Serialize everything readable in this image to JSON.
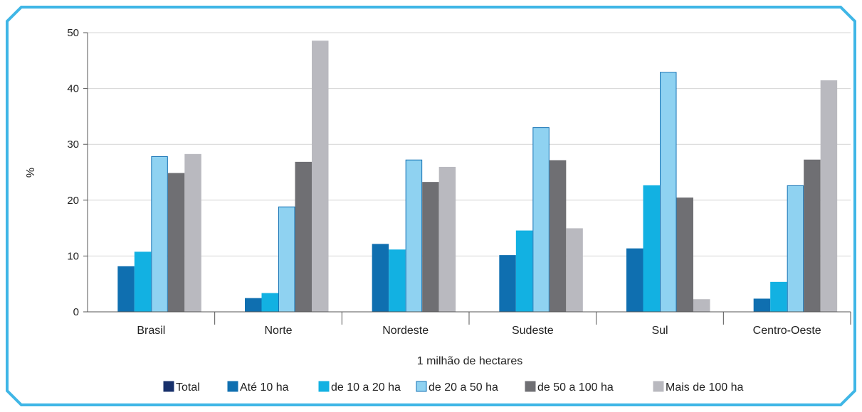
{
  "colors": {
    "frame": "#3fb6e6",
    "grid": "#d4d4d4",
    "axis": "#555555"
  },
  "chart_data": {
    "type": "bar",
    "title": "",
    "xlabel": "1 milhão de hectares",
    "ylabel": "%",
    "ylim": [
      0,
      50
    ],
    "yticks": [
      0,
      10,
      20,
      30,
      40,
      50
    ],
    "grid": true,
    "legend_position": "bottom",
    "categories": [
      "Brasil",
      "Norte",
      "Nordeste",
      "Sudeste",
      "Sul",
      "Centro-Oeste"
    ],
    "series": [
      {
        "name": "Total",
        "color": "#17306b",
        "border": "#17306b",
        "values": [
          null,
          null,
          null,
          null,
          null,
          null
        ]
      },
      {
        "name": "Até 10 ha",
        "color": "#0f6fb0",
        "border": "#0f6fb0",
        "values": [
          8.1,
          2.4,
          12.1,
          10.1,
          11.3,
          2.3
        ]
      },
      {
        "name": "de 10 a 20 ha",
        "color": "#12b1e2",
        "border": "#12b1e2",
        "values": [
          10.7,
          3.3,
          11.1,
          14.5,
          22.6,
          5.3
        ]
      },
      {
        "name": "de 20 a 50 ha",
        "color": "#8fd2f1",
        "border": "#1673b5",
        "values": [
          27.8,
          18.8,
          27.2,
          33.0,
          42.9,
          22.6
        ]
      },
      {
        "name": "de 50 a 100 ha",
        "color": "#6f6f73",
        "border": "#6f6f73",
        "values": [
          24.8,
          26.8,
          23.2,
          27.1,
          20.4,
          27.2
        ]
      },
      {
        "name": "Mais de 100 ha",
        "color": "#b9b9bf",
        "border": "#b9b9bf",
        "values": [
          28.2,
          48.5,
          25.9,
          14.9,
          2.2,
          41.4
        ]
      }
    ]
  }
}
